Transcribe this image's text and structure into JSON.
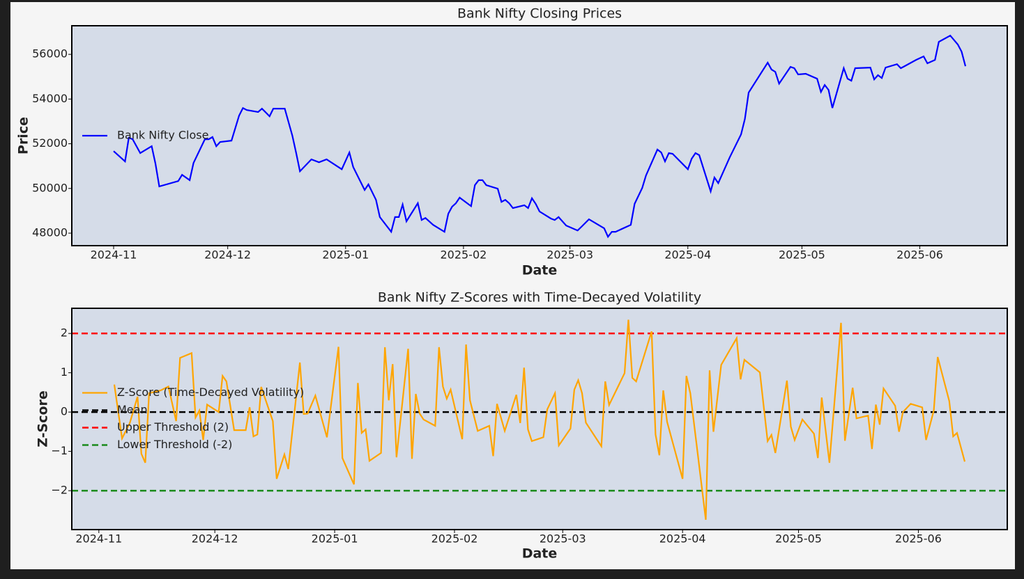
{
  "chart_data": [
    {
      "type": "line",
      "title": "Bank Nifty Closing Prices",
      "x_label": "Date",
      "y_label": "Price",
      "x": [
        0,
        3,
        4,
        5,
        7,
        10,
        11,
        12,
        17,
        18,
        20,
        21,
        24,
        25,
        26,
        27,
        28,
        31,
        33,
        34,
        35,
        38,
        39,
        41,
        42,
        45,
        47,
        48,
        49,
        52,
        54,
        56,
        60,
        62,
        63,
        66,
        67,
        69,
        70,
        73,
        74,
        75,
        76,
        77,
        80,
        81,
        82,
        84,
        87,
        88,
        89,
        90,
        91,
        94,
        95,
        96,
        97,
        98,
        101,
        102,
        103,
        104,
        105,
        108,
        109,
        110,
        111,
        112,
        115,
        116,
        117,
        119,
        122,
        123,
        125,
        129,
        130,
        131,
        132,
        136,
        137,
        139,
        140,
        143,
        144,
        145,
        146,
        147,
        151,
        152,
        153,
        154,
        157,
        158,
        159,
        162,
        165,
        166,
        167,
        172,
        173,
        174,
        175,
        178,
        179,
        180,
        182,
        185,
        186,
        187,
        188,
        189,
        192,
        193,
        194,
        195,
        199,
        200,
        201,
        202,
        203,
        206,
        207,
        208,
        211,
        213,
        214,
        216,
        217,
        220,
        222,
        223,
        224
      ],
      "series": [
        {
          "name": "Bank Nifty Close",
          "color": "#0000ff",
          "values": [
            51670,
            51210,
            52270,
            52200,
            51580,
            51890,
            51110,
            50090,
            50330,
            50610,
            50370,
            51140,
            52200,
            52200,
            52300,
            51890,
            52080,
            52140,
            53260,
            53600,
            53510,
            53420,
            53570,
            53230,
            53570,
            53570,
            52360,
            51580,
            50770,
            51300,
            51170,
            51300,
            50860,
            51610,
            50960,
            49930,
            50180,
            49490,
            48720,
            48060,
            48720,
            48720,
            49280,
            48530,
            49340,
            48590,
            48680,
            48370,
            48060,
            48870,
            49180,
            49340,
            49590,
            49210,
            50150,
            50370,
            50370,
            50150,
            49990,
            49400,
            49490,
            49340,
            49120,
            49250,
            49120,
            49560,
            49310,
            48970,
            48650,
            48590,
            48720,
            48340,
            48120,
            48280,
            48620,
            48220,
            47840,
            48060,
            48060,
            48370,
            49310,
            50020,
            50580,
            51740,
            51610,
            51210,
            51580,
            51550,
            50860,
            51330,
            51580,
            51490,
            49870,
            50490,
            50240,
            51390,
            52420,
            53110,
            54290,
            55630,
            55320,
            55220,
            54690,
            55440,
            55380,
            55100,
            55130,
            54910,
            54320,
            54630,
            54410,
            53600,
            55380,
            54910,
            54820,
            55380,
            55410,
            54880,
            55070,
            54940,
            55410,
            55560,
            55380,
            55470,
            55750,
            55910,
            55600,
            55750,
            56560,
            56840,
            56440,
            56120,
            55470
          ]
        }
      ],
      "xlim": [
        -11,
        235
      ],
      "xticks": [
        {
          "value": 0,
          "label": "2024-11"
        },
        {
          "value": 30,
          "label": "2024-12"
        },
        {
          "value": 61,
          "label": "2025-01"
        },
        {
          "value": 92,
          "label": "2025-02"
        },
        {
          "value": 120,
          "label": "2025-03"
        },
        {
          "value": 151,
          "label": "2025-04"
        },
        {
          "value": 181,
          "label": "2025-05"
        },
        {
          "value": 212,
          "label": "2025-06"
        }
      ],
      "ylim": [
        47440,
        57280
      ],
      "yticks": [
        48000,
        50000,
        52000,
        54000,
        56000
      ],
      "legend": "center left",
      "grid": false
    },
    {
      "type": "line",
      "title": "Bank Nifty Z-Scores with Time-Decayed Volatility",
      "x_label": "Date",
      "y_label": "Z-Score",
      "x": [
        4,
        6,
        8,
        10,
        11,
        12,
        13,
        16,
        18,
        20,
        21,
        24,
        25,
        26,
        27,
        28,
        31,
        32,
        33,
        35,
        38,
        39,
        40,
        41,
        42,
        45,
        46,
        48,
        49,
        52,
        53,
        54,
        56,
        59,
        62,
        63,
        66,
        67,
        68,
        69,
        70,
        73,
        74,
        75,
        76,
        77,
        80,
        81,
        82,
        83,
        84,
        87,
        88,
        89,
        90,
        91,
        94,
        95,
        96,
        98,
        101,
        102,
        103,
        105,
        108,
        109,
        110,
        111,
        112,
        115,
        116,
        118,
        119,
        122,
        123,
        124,
        125,
        126,
        130,
        131,
        132,
        136,
        137,
        138,
        139,
        143,
        144,
        145,
        146,
        147,
        151,
        152,
        153,
        157,
        158,
        159,
        161,
        165,
        166,
        167,
        171,
        173,
        174,
        175,
        178,
        179,
        180,
        182,
        185,
        186,
        187,
        189,
        192,
        193,
        195,
        196,
        199,
        200,
        201,
        202,
        203,
        206,
        207,
        208,
        210,
        213,
        214,
        216,
        217,
        220,
        221,
        222,
        224
      ],
      "series": [
        {
          "name": "Z-Score (Time-Decayed Volatility)",
          "color": "#ffa500",
          "values": [
            0.7,
            -0.67,
            -0.28,
            0.39,
            -1.06,
            -1.29,
            0.48,
            0.55,
            0.65,
            -0.23,
            1.38,
            1.5,
            -0.14,
            0.04,
            -0.71,
            0.19,
            0.0,
            0.92,
            0.78,
            -0.46,
            -0.46,
            0.12,
            -0.62,
            -0.57,
            0.64,
            -0.23,
            -1.7,
            -1.08,
            -1.45,
            1.26,
            -0.05,
            -0.04,
            0.42,
            -0.64,
            1.66,
            -1.17,
            -1.84,
            0.74,
            -0.53,
            -0.44,
            -1.24,
            -1.04,
            1.65,
            0.3,
            1.22,
            -1.15,
            1.61,
            -1.19,
            0.46,
            -0.04,
            -0.19,
            -0.35,
            1.65,
            0.65,
            0.34,
            0.57,
            -0.69,
            1.72,
            0.3,
            -0.48,
            -0.35,
            -1.12,
            0.21,
            -0.48,
            0.44,
            -0.28,
            1.13,
            -0.44,
            -0.74,
            -0.64,
            0.07,
            0.48,
            -0.85,
            -0.42,
            0.57,
            0.81,
            0.48,
            -0.27,
            -0.87,
            0.78,
            0.18,
            0.99,
            2.35,
            0.87,
            0.78,
            2.05,
            -0.57,
            -1.1,
            0.55,
            -0.25,
            -1.7,
            0.92,
            0.48,
            -2.74,
            1.06,
            -0.5,
            1.2,
            1.88,
            0.83,
            1.33,
            1.01,
            -0.74,
            -0.58,
            -1.04,
            0.8,
            -0.37,
            -0.71,
            -0.19,
            -0.55,
            -1.17,
            0.37,
            -1.29,
            2.27,
            -0.73,
            0.62,
            -0.16,
            -0.09,
            -0.94,
            0.19,
            -0.32,
            0.6,
            0.16,
            -0.5,
            0.0,
            0.21,
            0.12,
            -0.71,
            0.04,
            1.4,
            0.28,
            -0.62,
            -0.53,
            -1.26
          ]
        }
      ],
      "hlines": [
        {
          "name": "Mean",
          "value": 0,
          "color": "#000000"
        },
        {
          "name": "Upper Threshold (2)",
          "value": 2,
          "color": "#ff0000"
        },
        {
          "name": "Lower Threshold (-2)",
          "value": -2,
          "color": "#1a8a1a"
        }
      ],
      "xlim": [
        -7,
        235
      ],
      "xticks": [
        {
          "value": 0,
          "label": "2024-11"
        },
        {
          "value": 30,
          "label": "2024-12"
        },
        {
          "value": 61,
          "label": "2025-01"
        },
        {
          "value": 92,
          "label": "2025-02"
        },
        {
          "value": 120,
          "label": "2025-03"
        },
        {
          "value": 151,
          "label": "2025-04"
        },
        {
          "value": 181,
          "label": "2025-05"
        },
        {
          "value": 212,
          "label": "2025-06"
        }
      ],
      "ylim": [
        -2.99,
        2.64
      ],
      "yticks": [
        {
          "value": -2,
          "label": "−2"
        },
        {
          "value": -1,
          "label": "−1"
        },
        0,
        1,
        2
      ],
      "legend": "center left",
      "grid": false
    }
  ]
}
